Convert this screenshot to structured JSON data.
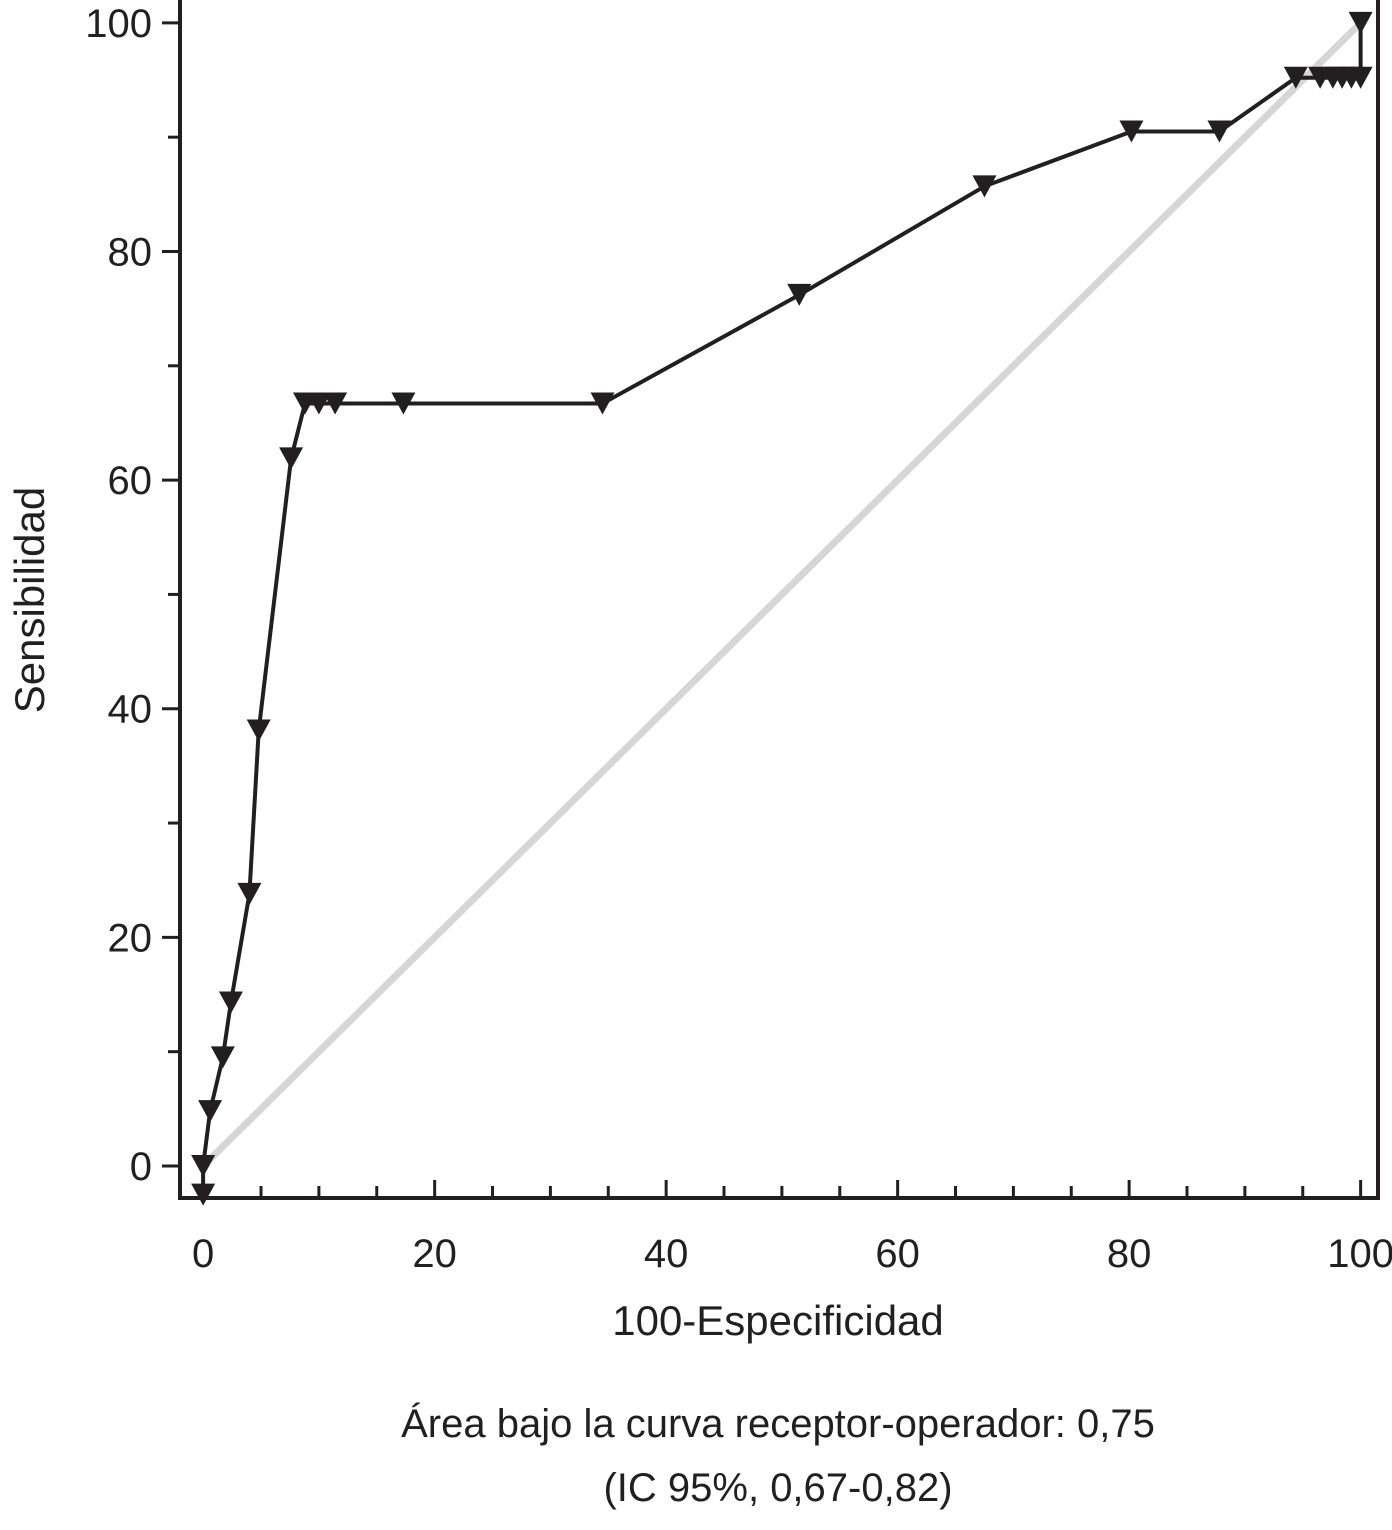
{
  "chart_data": {
    "type": "line",
    "xlabel": "100-Especificidad",
    "ylabel": "Sensibilidad",
    "xlim": [
      -2,
      101.5
    ],
    "ylim": [
      -2.8,
      102
    ],
    "x_ticks": [
      0,
      20,
      40,
      60,
      80,
      100
    ],
    "y_ticks": [
      0,
      20,
      40,
      60,
      80,
      100
    ],
    "x_tick_labels": [
      "0",
      "20",
      "40",
      "60",
      "80",
      "100"
    ],
    "y_tick_labels": [
      "0",
      "20",
      "40",
      "60",
      "80",
      "100"
    ],
    "grid": false,
    "legend": "none",
    "series": [
      {
        "marker": "triangle-down",
        "color": "#231f20",
        "x": [
          0,
          0,
          0.6,
          1.7,
          2.4,
          4.0,
          4.8,
          7.6,
          8.8,
          10.0,
          11.4,
          17.3,
          34.5,
          51.5,
          67.5,
          80.2,
          87.8,
          94.4,
          96.5,
          97.6,
          98.4,
          99.2,
          100,
          100
        ],
        "y": [
          -2.5,
          0,
          4.8,
          9.5,
          14.3,
          23.8,
          38.1,
          61.9,
          66.7,
          66.7,
          66.7,
          66.7,
          66.7,
          76.2,
          85.7,
          90.5,
          90.5,
          95.2,
          95.2,
          95.2,
          95.2,
          95.2,
          95.2,
          100
        ]
      },
      {
        "color": "#d6d6d6",
        "x": [
          0,
          100
        ],
        "y": [
          0,
          100
        ]
      }
    ],
    "annotations": [
      "Área bajo la curva receptor-operador: 0,75",
      "(IC 95%, 0,67-0,82)"
    ]
  }
}
